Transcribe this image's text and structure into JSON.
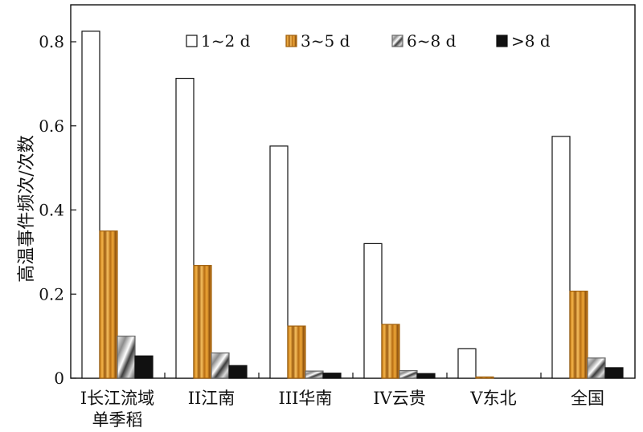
{
  "chart_data": {
    "type": "bar",
    "ylabel": "高温事件频次/次数",
    "ylim": [
      0,
      0.9
    ],
    "yticks": [
      "0",
      "0.2",
      "0.4",
      "0.6",
      "0.8"
    ],
    "ytick_values": [
      0,
      0.2,
      0.4,
      0.6,
      0.8
    ],
    "categories": [
      [
        "I长江流域",
        "单季稻"
      ],
      [
        "II江南"
      ],
      [
        "III华南"
      ],
      [
        "IV云贵"
      ],
      [
        "V东北"
      ],
      [
        "全国"
      ]
    ],
    "series": [
      {
        "name": "1~2 d",
        "values": [
          0.825,
          0.713,
          0.552,
          0.32,
          0.07,
          0.575
        ]
      },
      {
        "name": "3~5 d",
        "values": [
          0.35,
          0.268,
          0.124,
          0.128,
          0.003,
          0.207
        ]
      },
      {
        "name": "6~8 d",
        "values": [
          0.1,
          0.06,
          0.017,
          0.018,
          0.0,
          0.048
        ]
      },
      {
        "name": ">8 d",
        "values": [
          0.053,
          0.03,
          0.012,
          0.011,
          0.0,
          0.025
        ]
      }
    ],
    "legend_position": "top"
  }
}
